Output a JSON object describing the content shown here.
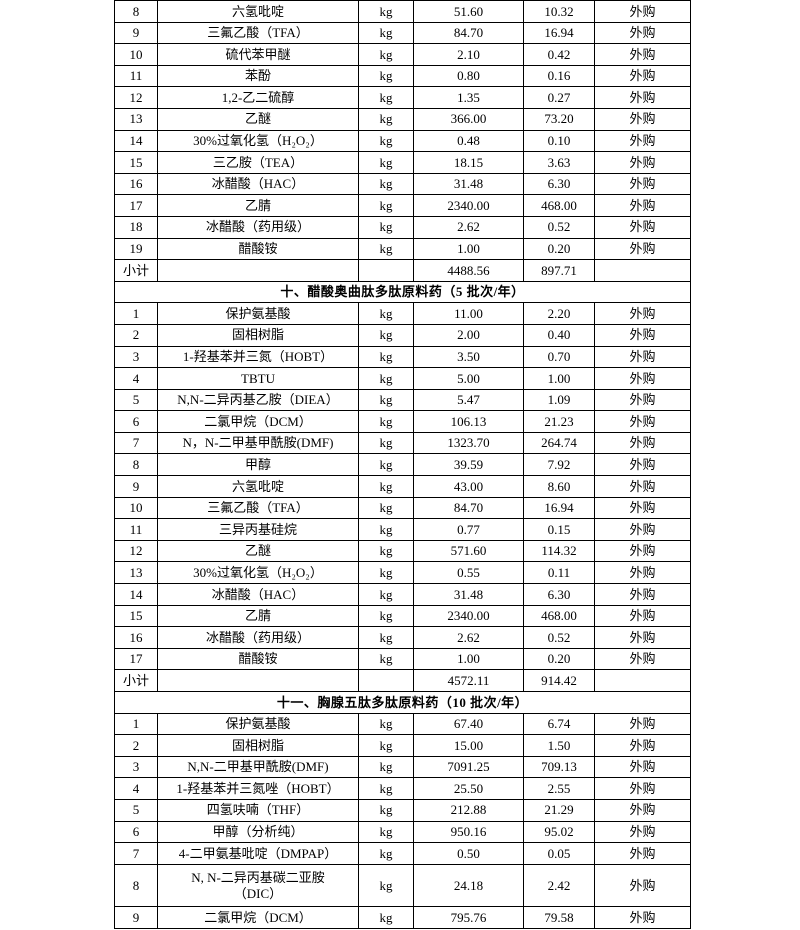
{
  "table": {
    "unit_label": "kg",
    "source_label": "外购",
    "subtotal_label": "小计",
    "sections": [
      {
        "header": null,
        "rows": [
          {
            "num": "8",
            "name": "六氢吡啶",
            "unit": "kg",
            "v1": "51.60",
            "v2": "10.32",
            "source": "外购"
          },
          {
            "num": "9",
            "name": "三氟乙酸（TFA）",
            "unit": "kg",
            "v1": "84.70",
            "v2": "16.94",
            "source": "外购"
          },
          {
            "num": "10",
            "name": "硫代苯甲醚",
            "unit": "kg",
            "v1": "2.10",
            "v2": "0.42",
            "source": "外购"
          },
          {
            "num": "11",
            "name": "苯酚",
            "unit": "kg",
            "v1": "0.80",
            "v2": "0.16",
            "source": "外购"
          },
          {
            "num": "12",
            "name": "1,2-乙二硫醇",
            "unit": "kg",
            "v1": "1.35",
            "v2": "0.27",
            "source": "外购"
          },
          {
            "num": "13",
            "name": "乙醚",
            "unit": "kg",
            "v1": "366.00",
            "v2": "73.20",
            "source": "外购"
          },
          {
            "num": "14",
            "name": "30%过氧化氢（H₂O₂）",
            "unit": "kg",
            "v1": "0.48",
            "v2": "0.10",
            "source": "外购"
          },
          {
            "num": "15",
            "name": "三乙胺（TEA）",
            "unit": "kg",
            "v1": "18.15",
            "v2": "3.63",
            "source": "外购"
          },
          {
            "num": "16",
            "name": "冰醋酸（HAC）",
            "unit": "kg",
            "v1": "31.48",
            "v2": "6.30",
            "source": "外购"
          },
          {
            "num": "17",
            "name": "乙腈",
            "unit": "kg",
            "v1": "2340.00",
            "v2": "468.00",
            "source": "外购"
          },
          {
            "num": "18",
            "name": "冰醋酸（药用级）",
            "unit": "kg",
            "v1": "2.62",
            "v2": "0.52",
            "source": "外购"
          },
          {
            "num": "19",
            "name": "醋酸铵",
            "unit": "kg",
            "v1": "1.00",
            "v2": "0.20",
            "source": "外购"
          }
        ],
        "subtotal": {
          "label": "小计",
          "v1": "4488.56",
          "v2": "897.71"
        }
      },
      {
        "header": "十、醋酸奥曲肽多肽原料药（5 批次/年）",
        "rows": [
          {
            "num": "1",
            "name": "保护氨基酸",
            "unit": "kg",
            "v1": "11.00",
            "v2": "2.20",
            "source": "外购"
          },
          {
            "num": "2",
            "name": "固相树脂",
            "unit": "kg",
            "v1": "2.00",
            "v2": "0.40",
            "source": "外购"
          },
          {
            "num": "3",
            "name": "1-羟基苯并三氮（HOBT）",
            "unit": "kg",
            "v1": "3.50",
            "v2": "0.70",
            "source": "外购"
          },
          {
            "num": "4",
            "name": "TBTU",
            "unit": "kg",
            "v1": "5.00",
            "v2": "1.00",
            "source": "外购"
          },
          {
            "num": "5",
            "name": "N,N-二异丙基乙胺（DIEA）",
            "unit": "kg",
            "v1": "5.47",
            "v2": "1.09",
            "source": "外购"
          },
          {
            "num": "6",
            "name": "二氯甲烷（DCM）",
            "unit": "kg",
            "v1": "106.13",
            "v2": "21.23",
            "source": "外购"
          },
          {
            "num": "7",
            "name": "N，N-二甲基甲酰胺(DMF)",
            "unit": "kg",
            "v1": "1323.70",
            "v2": "264.74",
            "source": "外购"
          },
          {
            "num": "8",
            "name": "甲醇",
            "unit": "kg",
            "v1": "39.59",
            "v2": "7.92",
            "source": "外购"
          },
          {
            "num": "9",
            "name": "六氢吡啶",
            "unit": "kg",
            "v1": "43.00",
            "v2": "8.60",
            "source": "外购"
          },
          {
            "num": "10",
            "name": "三氟乙酸（TFA）",
            "unit": "kg",
            "v1": "84.70",
            "v2": "16.94",
            "source": "外购"
          },
          {
            "num": "11",
            "name": "三异丙基硅烷",
            "unit": "kg",
            "v1": "0.77",
            "v2": "0.15",
            "source": "外购"
          },
          {
            "num": "12",
            "name": "乙醚",
            "unit": "kg",
            "v1": "571.60",
            "v2": "114.32",
            "source": "外购"
          },
          {
            "num": "13",
            "name": "30%过氧化氢（H₂O₂）",
            "unit": "kg",
            "v1": "0.55",
            "v2": "0.11",
            "source": "外购"
          },
          {
            "num": "14",
            "name": "冰醋酸（HAC）",
            "unit": "kg",
            "v1": "31.48",
            "v2": "6.30",
            "source": "外购"
          },
          {
            "num": "15",
            "name": "乙腈",
            "unit": "kg",
            "v1": "2340.00",
            "v2": "468.00",
            "source": "外购"
          },
          {
            "num": "16",
            "name": "冰醋酸（药用级）",
            "unit": "kg",
            "v1": "2.62",
            "v2": "0.52",
            "source": "外购"
          },
          {
            "num": "17",
            "name": "醋酸铵",
            "unit": "kg",
            "v1": "1.00",
            "v2": "0.20",
            "source": "外购"
          }
        ],
        "subtotal": {
          "label": "小计",
          "v1": "4572.11",
          "v2": "914.42"
        }
      },
      {
        "header": "十一、胸腺五肽多肽原料药（10 批次/年）",
        "rows": [
          {
            "num": "1",
            "name": "保护氨基酸",
            "unit": "kg",
            "v1": "67.40",
            "v2": "6.74",
            "source": "外购"
          },
          {
            "num": "2",
            "name": "固相树脂",
            "unit": "kg",
            "v1": "15.00",
            "v2": "1.50",
            "source": "外购"
          },
          {
            "num": "3",
            "name": "N,N-二甲基甲酰胺(DMF)",
            "unit": "kg",
            "v1": "7091.25",
            "v2": "709.13",
            "source": "外购"
          },
          {
            "num": "4",
            "name": "1-羟基苯并三氮唑（HOBT）",
            "unit": "kg",
            "v1": "25.50",
            "v2": "2.55",
            "source": "外购"
          },
          {
            "num": "5",
            "name": "四氢呋喃（THF）",
            "unit": "kg",
            "v1": "212.88",
            "v2": "21.29",
            "source": "外购"
          },
          {
            "num": "6",
            "name": "甲醇（分析纯）",
            "unit": "kg",
            "v1": "950.16",
            "v2": "95.02",
            "source": "外购"
          },
          {
            "num": "7",
            "name": "4-二甲氨基吡啶（DMPAP）",
            "unit": "kg",
            "v1": "0.50",
            "v2": "0.05",
            "source": "外购"
          },
          {
            "num": "8",
            "name": "N, N-二异丙基碳二亚胺\n（DIC）",
            "unit": "kg",
            "v1": "24.18",
            "v2": "2.42",
            "source": "外购",
            "tall": true
          },
          {
            "num": "9",
            "name": "二氯甲烷（DCM）",
            "unit": "kg",
            "v1": "795.76",
            "v2": "79.58",
            "source": "外购"
          }
        ],
        "subtotal": null
      }
    ]
  }
}
